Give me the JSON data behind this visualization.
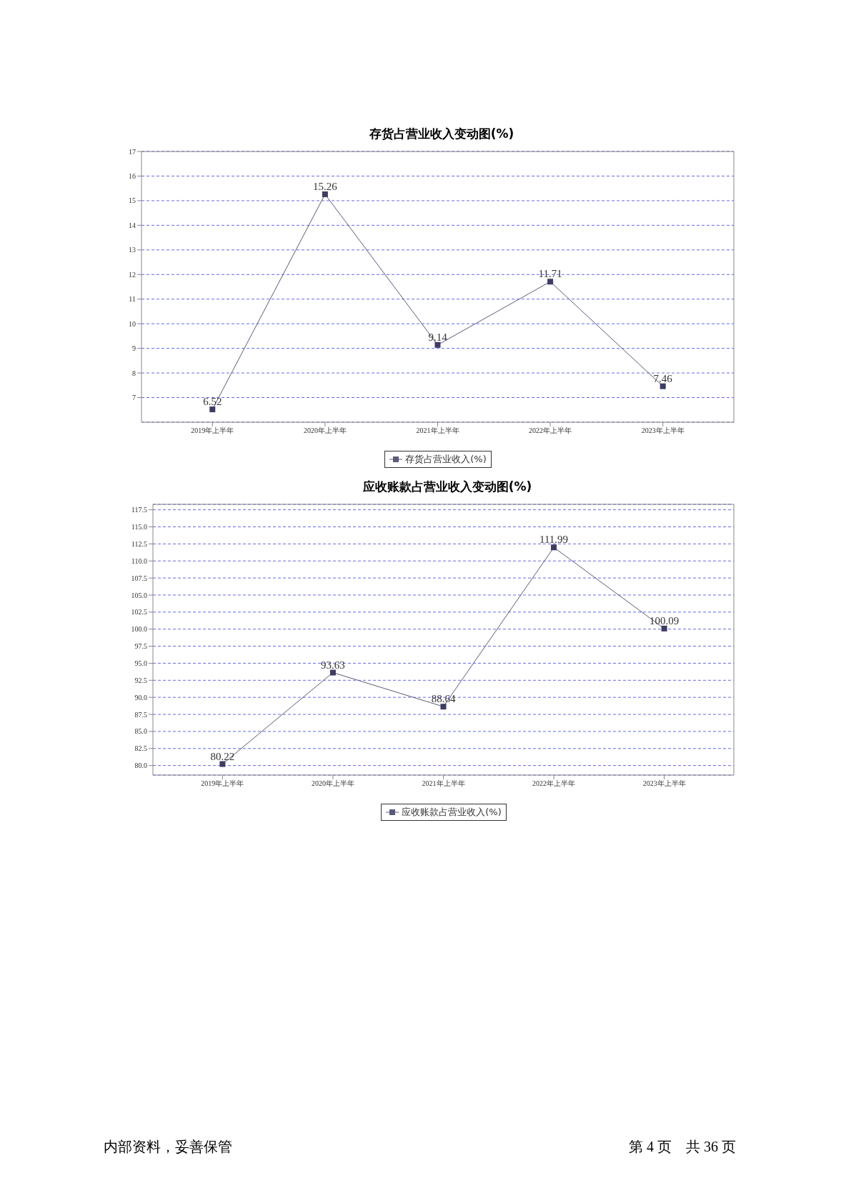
{
  "chart_data": [
    {
      "type": "line",
      "title": "存货占营业收入变动图(%)",
      "categories": [
        "2019年上半年",
        "2020年上半年",
        "2021年上半年",
        "2022年上半年",
        "2023年上半年"
      ],
      "series": [
        {
          "name": "存货占营业收入(%)",
          "color": "#5a5a7a",
          "values": [
            6.52,
            15.26,
            9.14,
            11.71,
            7.46
          ]
        }
      ],
      "ylim": [
        6,
        17
      ],
      "yticks": [
        7,
        8,
        9,
        10,
        11,
        12,
        13,
        14,
        15,
        16,
        17
      ],
      "grid": "y",
      "legend": "bottom",
      "marker": "square",
      "line_style": "solid",
      "data_labels": true
    },
    {
      "type": "line",
      "title": "应收账款占营业收入变动图(%)",
      "categories": [
        "2019年上半年",
        "2020年上半年",
        "2021年上半年",
        "2022年上半年",
        "2023年上半年"
      ],
      "series": [
        {
          "name": "应收账款占营业收入(%)",
          "color": "#5a5a7a",
          "values": [
            80.22,
            93.63,
            88.64,
            111.99,
            100.09
          ]
        }
      ],
      "ylim": [
        78.6,
        118.3
      ],
      "yticks": [
        {
          "value": 80,
          "label": "80.0"
        },
        {
          "value": 82.5,
          "label": "82.5"
        },
        {
          "value": 85,
          "label": "85.0"
        },
        {
          "value": 87.5,
          "label": "87.5"
        },
        {
          "value": 90,
          "label": "90.0"
        },
        {
          "value": 92.5,
          "label": "92.5"
        },
        {
          "value": 95,
          "label": "95.0"
        },
        {
          "value": 97.5,
          "label": "97.5"
        },
        {
          "value": 100,
          "label": "100.0"
        },
        {
          "value": 102.5,
          "label": "102.5"
        },
        {
          "value": 105,
          "label": "105.0"
        },
        {
          "value": 107.5,
          "label": "107.5"
        },
        {
          "value": 110,
          "label": "110.0"
        },
        {
          "value": 112.5,
          "label": "112.5"
        },
        {
          "value": 115,
          "label": "115.0"
        },
        {
          "value": 117.5,
          "label": "117.5"
        }
      ],
      "grid": "y",
      "legend": "bottom",
      "marker": "square",
      "line_style": "solid",
      "data_labels": true,
      "annotations": [
        "内部资料，妥善保管",
        "第 4 页　共 36 页"
      ]
    }
  ]
}
